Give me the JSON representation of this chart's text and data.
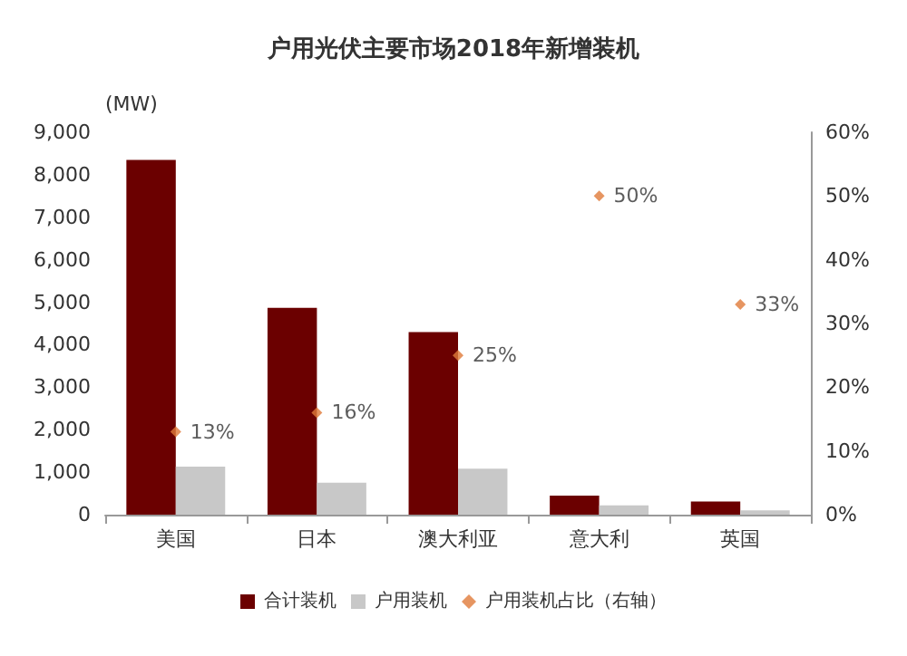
{
  "chart_data": {
    "type": "bar",
    "title": "户用光伏主要市场2018年新增装机",
    "ylabel": "(MW)",
    "categories": [
      "美国",
      "日本",
      "澳大利亚",
      "意大利",
      "英国"
    ],
    "series": [
      {
        "name": "合计装机",
        "color": "#6b0000",
        "values": [
          8350,
          4870,
          4300,
          450,
          310
        ]
      },
      {
        "name": "户用装机",
        "color": "#c8c8c8",
        "values": [
          1130,
          750,
          1080,
          220,
          100
        ]
      },
      {
        "name": "户用装机占比（右轴）",
        "type": "scatter",
        "axis": "y2",
        "color": "#e07b39",
        "marker": "diamond",
        "x": [
          "美国",
          "日本",
          "澳大利亚",
          "意大利",
          "英国"
        ],
        "values": [
          13,
          16,
          25,
          50,
          33
        ],
        "value_labels": [
          "13%",
          "16%",
          "25%",
          "50%",
          "33%"
        ]
      }
    ],
    "ylim": [
      0,
      9000
    ],
    "yticks": [
      {
        "value": 0,
        "label": "0"
      },
      {
        "value": 1000,
        "label": "1,000"
      },
      {
        "value": 2000,
        "label": "2,000"
      },
      {
        "value": 3000,
        "label": "3,000"
      },
      {
        "value": 4000,
        "label": "4,000"
      },
      {
        "value": 5000,
        "label": "5,000"
      },
      {
        "value": 6000,
        "label": "6,000"
      },
      {
        "value": 7000,
        "label": "7,000"
      },
      {
        "value": 8000,
        "label": "8,000"
      },
      {
        "value": 9000,
        "label": "9,000"
      }
    ],
    "y2lim": [
      0,
      60
    ],
    "y2ticks": [
      {
        "value": 0,
        "label": "0%"
      },
      {
        "value": 10,
        "label": "10%"
      },
      {
        "value": 20,
        "label": "20%"
      },
      {
        "value": 30,
        "label": "30%"
      },
      {
        "value": 40,
        "label": "40%"
      },
      {
        "value": 50,
        "label": "50%"
      },
      {
        "value": 60,
        "label": "60%"
      }
    ],
    "grid": false,
    "legend": "bottom"
  }
}
